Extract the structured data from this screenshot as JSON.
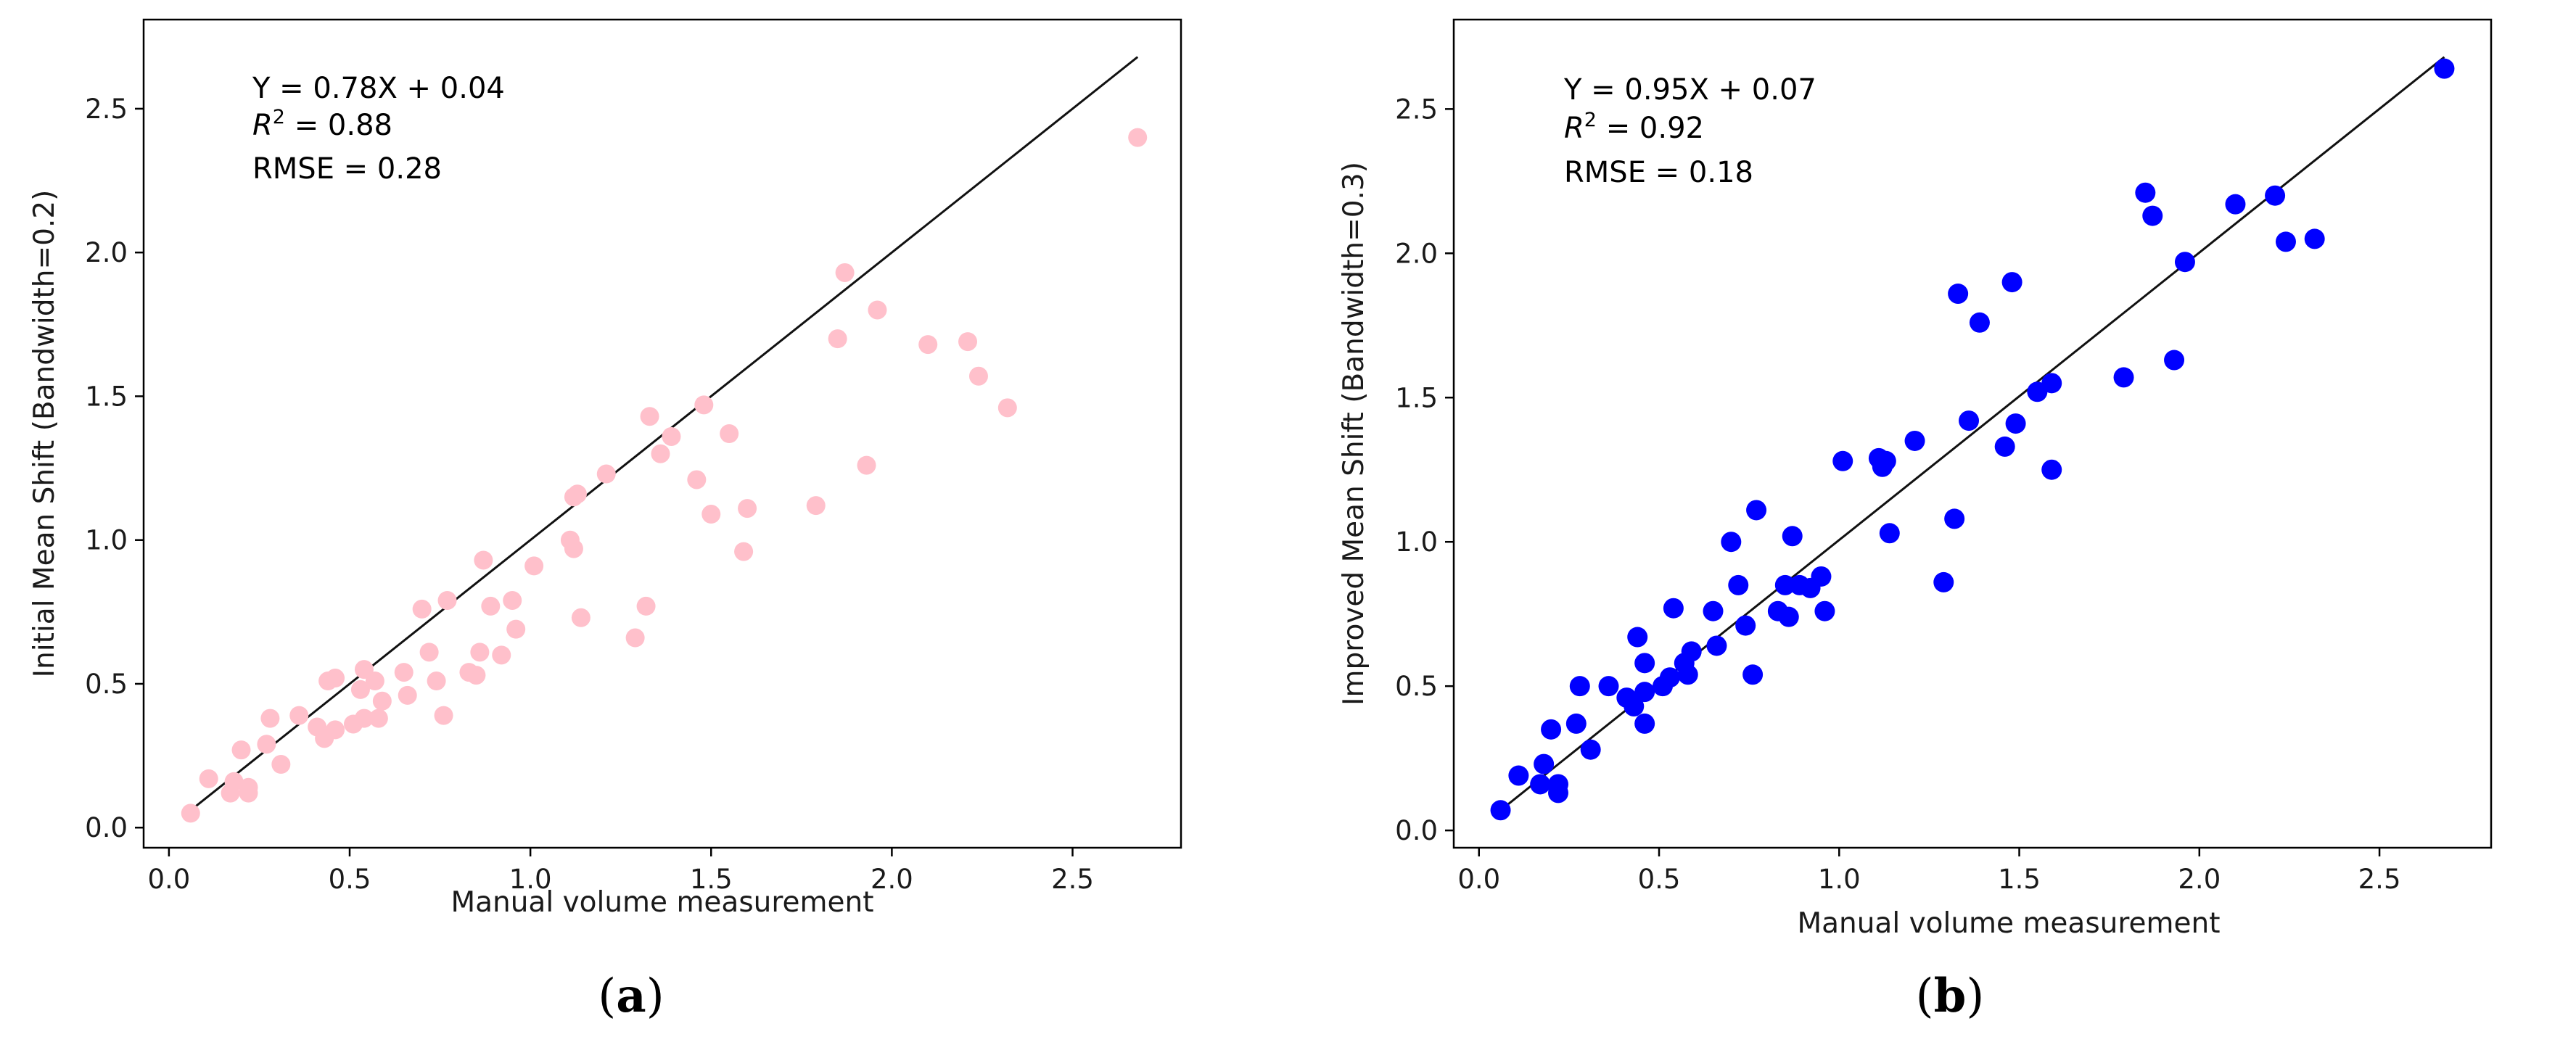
{
  "chart_data": [
    {
      "id": "a",
      "type": "scatter",
      "panel_label": "a",
      "xlabel": "Manual volume measurement",
      "ylabel": "Initial Mean Shift (Bandwidth=0.2)",
      "xlim": [
        -0.07,
        2.8
      ],
      "ylim": [
        -0.07,
        2.81
      ],
      "xticks": [
        0.0,
        0.5,
        1.0,
        1.5,
        2.0,
        2.5
      ],
      "yticks": [
        0.0,
        0.5,
        1.0,
        1.5,
        2.0,
        2.5
      ],
      "annotations": {
        "equation": "Y = 0.78X + 0.04",
        "r2_symbol": "R",
        "r2_value": " = 0.88",
        "rmse": "RMSE = 0.28"
      },
      "point_color": "#ffc0cb",
      "line": {
        "x": [
          0.06,
          2.68
        ],
        "y": [
          0.06,
          2.68
        ],
        "color": "#111111"
      },
      "series": [
        {
          "name": "Initial Mean Shift",
          "points": [
            [
              0.06,
              0.05
            ],
            [
              0.11,
              0.17
            ],
            [
              0.17,
              0.12
            ],
            [
              0.18,
              0.16
            ],
            [
              0.2,
              0.27
            ],
            [
              0.22,
              0.14
            ],
            [
              0.22,
              0.12
            ],
            [
              0.27,
              0.29
            ],
            [
              0.28,
              0.38
            ],
            [
              0.31,
              0.22
            ],
            [
              0.36,
              0.39
            ],
            [
              0.41,
              0.35
            ],
            [
              0.43,
              0.31
            ],
            [
              0.44,
              0.51
            ],
            [
              0.46,
              0.52
            ],
            [
              0.46,
              0.34
            ],
            [
              0.51,
              0.36
            ],
            [
              0.53,
              0.48
            ],
            [
              0.54,
              0.55
            ],
            [
              0.54,
              0.38
            ],
            [
              0.57,
              0.51
            ],
            [
              0.58,
              0.38
            ],
            [
              0.59,
              0.44
            ],
            [
              0.65,
              0.54
            ],
            [
              0.66,
              0.46
            ],
            [
              0.7,
              0.76
            ],
            [
              0.72,
              0.61
            ],
            [
              0.74,
              0.51
            ],
            [
              0.76,
              0.39
            ],
            [
              0.77,
              0.79
            ],
            [
              0.83,
              0.54
            ],
            [
              0.85,
              0.53
            ],
            [
              0.86,
              0.61
            ],
            [
              0.87,
              0.93
            ],
            [
              0.89,
              0.77
            ],
            [
              0.92,
              0.6
            ],
            [
              0.95,
              0.79
            ],
            [
              0.96,
              0.69
            ],
            [
              1.01,
              0.91
            ],
            [
              1.11,
              1.0
            ],
            [
              1.12,
              0.97
            ],
            [
              1.12,
              1.15
            ],
            [
              1.13,
              1.16
            ],
            [
              1.14,
              0.73
            ],
            [
              1.21,
              1.23
            ],
            [
              1.29,
              0.66
            ],
            [
              1.32,
              0.77
            ],
            [
              1.33,
              1.43
            ],
            [
              1.36,
              1.3
            ],
            [
              1.39,
              1.36
            ],
            [
              1.46,
              1.21
            ],
            [
              1.48,
              1.47
            ],
            [
              1.5,
              1.09
            ],
            [
              1.55,
              1.37
            ],
            [
              1.59,
              0.96
            ],
            [
              1.6,
              1.11
            ],
            [
              1.79,
              1.12
            ],
            [
              1.85,
              1.7
            ],
            [
              1.87,
              1.93
            ],
            [
              1.93,
              1.26
            ],
            [
              1.96,
              1.8
            ],
            [
              2.1,
              1.68
            ],
            [
              2.21,
              1.69
            ],
            [
              2.24,
              1.57
            ],
            [
              2.32,
              1.46
            ],
            [
              2.68,
              2.4
            ]
          ]
        }
      ]
    },
    {
      "id": "b",
      "type": "scatter",
      "panel_label": "b",
      "xlabel": "Manual volume measurement",
      "ylabel": "Improved Mean Shift (Bandwidth=0.3)",
      "xlim": [
        -0.07,
        2.81
      ],
      "ylim": [
        -0.06,
        2.81
      ],
      "xticks": [
        0.0,
        0.5,
        1.0,
        1.5,
        2.0,
        2.5
      ],
      "yticks": [
        0.0,
        0.5,
        1.0,
        1.5,
        2.0,
        2.5
      ],
      "annotations": {
        "equation": "Y = 0.95X + 0.07",
        "r2_symbol": "R",
        "r2_value": " = 0.92",
        "rmse": "RMSE = 0.18"
      },
      "point_color": "#0000ff",
      "line": {
        "x": [
          0.06,
          2.68
        ],
        "y": [
          0.07,
          2.68
        ],
        "color": "#111111"
      },
      "series": [
        {
          "name": "Improved Mean Shift",
          "points": [
            [
              0.06,
              0.07
            ],
            [
              0.11,
              0.19
            ],
            [
              0.17,
              0.16
            ],
            [
              0.18,
              0.23
            ],
            [
              0.2,
              0.35
            ],
            [
              0.22,
              0.16
            ],
            [
              0.22,
              0.13
            ],
            [
              0.27,
              0.37
            ],
            [
              0.28,
              0.5
            ],
            [
              0.31,
              0.28
            ],
            [
              0.36,
              0.5
            ],
            [
              0.41,
              0.46
            ],
            [
              0.43,
              0.43
            ],
            [
              0.44,
              0.67
            ],
            [
              0.46,
              0.58
            ],
            [
              0.46,
              0.37
            ],
            [
              0.46,
              0.48
            ],
            [
              0.51,
              0.5
            ],
            [
              0.53,
              0.53
            ],
            [
              0.54,
              0.77
            ],
            [
              0.57,
              0.58
            ],
            [
              0.58,
              0.54
            ],
            [
              0.59,
              0.62
            ],
            [
              0.65,
              0.76
            ],
            [
              0.66,
              0.64
            ],
            [
              0.7,
              1.0
            ],
            [
              0.72,
              0.85
            ],
            [
              0.74,
              0.71
            ],
            [
              0.76,
              0.54
            ],
            [
              0.77,
              1.11
            ],
            [
              0.83,
              0.76
            ],
            [
              0.85,
              0.85
            ],
            [
              0.86,
              0.74
            ],
            [
              0.87,
              1.02
            ],
            [
              0.89,
              0.85
            ],
            [
              0.92,
              0.84
            ],
            [
              0.95,
              0.88
            ],
            [
              0.96,
              0.76
            ],
            [
              1.01,
              1.28
            ],
            [
              1.11,
              1.29
            ],
            [
              1.12,
              1.26
            ],
            [
              1.13,
              1.28
            ],
            [
              1.14,
              1.03
            ],
            [
              1.21,
              1.35
            ],
            [
              1.29,
              0.86
            ],
            [
              1.32,
              1.08
            ],
            [
              1.33,
              1.86
            ],
            [
              1.36,
              1.42
            ],
            [
              1.39,
              1.76
            ],
            [
              1.46,
              1.33
            ],
            [
              1.48,
              1.9
            ],
            [
              1.49,
              1.41
            ],
            [
              1.55,
              1.52
            ],
            [
              1.59,
              1.55
            ],
            [
              1.59,
              1.25
            ],
            [
              1.79,
              1.57
            ],
            [
              1.85,
              2.21
            ],
            [
              1.87,
              2.13
            ],
            [
              1.93,
              1.63
            ],
            [
              1.96,
              1.97
            ],
            [
              2.1,
              2.17
            ],
            [
              2.21,
              2.2
            ],
            [
              2.24,
              2.04
            ],
            [
              2.32,
              2.05
            ],
            [
              2.68,
              2.64
            ]
          ]
        }
      ]
    }
  ]
}
